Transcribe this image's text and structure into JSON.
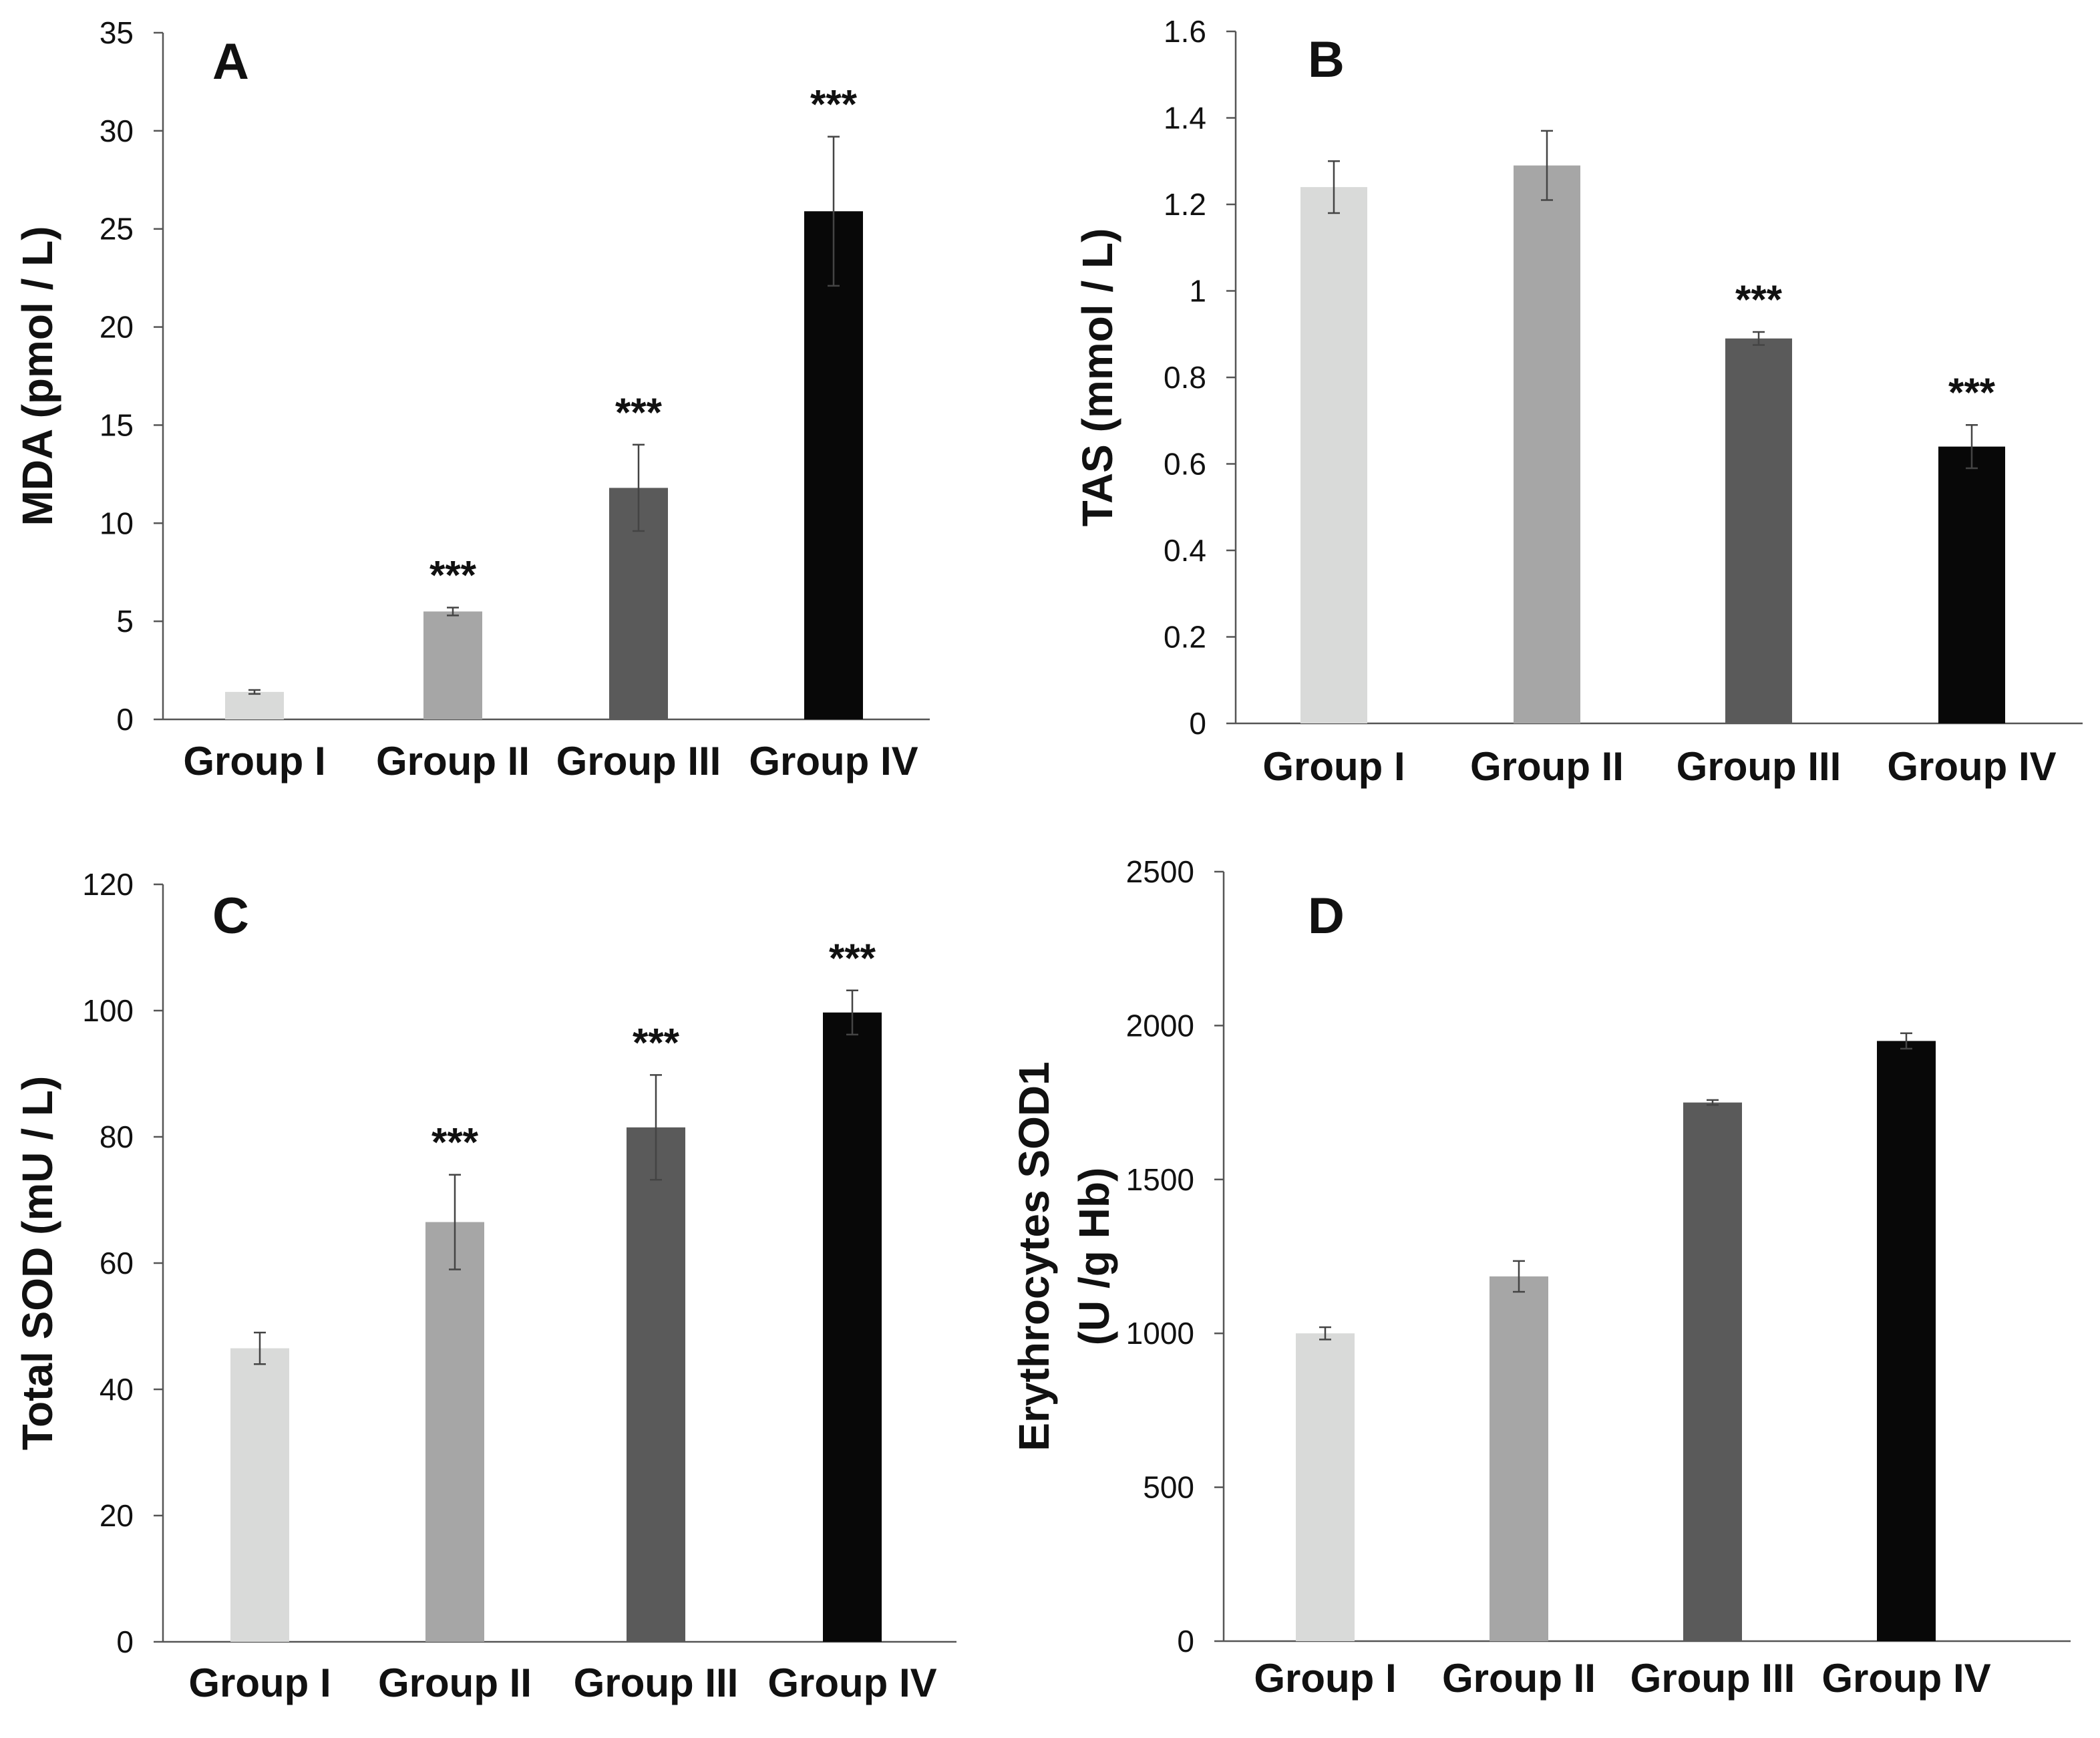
{
  "chart_data": [
    {
      "type": "bar",
      "panel_label": "A",
      "ylabel": "MDA (pmol / L)",
      "ylim": [
        0,
        35
      ],
      "yticks": [
        0,
        5,
        10,
        15,
        20,
        25,
        30,
        35
      ],
      "categories": [
        "Group I",
        "Group II",
        "Group III",
        "Group IV"
      ],
      "values": [
        1.4,
        5.5,
        11.8,
        25.9
      ],
      "errors": [
        0.1,
        0.2,
        2.2,
        3.8
      ],
      "significance": [
        "",
        "***",
        "***",
        "***"
      ],
      "colors": [
        "#d9dad9",
        "#a6a6a6",
        "#5a5a5a",
        "#080808"
      ]
    },
    {
      "type": "bar",
      "panel_label": "B",
      "ylabel": "TAS (mmol / L)",
      "ylim": [
        0,
        1.6
      ],
      "yticks": [
        0,
        0.2,
        0.4,
        0.6,
        0.8,
        1,
        1.2,
        1.4,
        1.6
      ],
      "categories": [
        "Group I",
        "Group II",
        "Group III",
        "Group IV"
      ],
      "values": [
        1.24,
        1.29,
        0.89,
        0.64
      ],
      "errors": [
        0.06,
        0.08,
        0.015,
        0.05
      ],
      "significance": [
        "",
        "",
        "***",
        "***"
      ],
      "colors": [
        "#d9dad9",
        "#a6a6a6",
        "#5a5a5a",
        "#080808"
      ]
    },
    {
      "type": "bar",
      "panel_label": "C",
      "ylabel": "Total SOD (mU / L)",
      "ylim": [
        0,
        120
      ],
      "yticks": [
        0,
        20,
        40,
        60,
        80,
        100,
        120
      ],
      "categories": [
        "Group I",
        "Group II",
        "Group III",
        "Group IV"
      ],
      "values": [
        46.5,
        66.5,
        81.5,
        99.7
      ],
      "errors": [
        2.5,
        7.5,
        8.3,
        3.5
      ],
      "significance": [
        "",
        "***",
        "***",
        "***"
      ],
      "colors": [
        "#d9dad9",
        "#a6a6a6",
        "#5a5a5a",
        "#080808"
      ]
    },
    {
      "type": "bar",
      "panel_label": "D",
      "ylabel": "Erythrocytes SOD1",
      "ylabel2": "(U /g Hb)",
      "ylim": [
        0,
        2500
      ],
      "yticks": [
        0,
        500,
        1000,
        1500,
        2000,
        2500
      ],
      "categories": [
        "Group I",
        "Group II",
        "Group III",
        "Group IV"
      ],
      "values": [
        1000,
        1185,
        1750,
        1950
      ],
      "errors": [
        20,
        50,
        8,
        25
      ],
      "significance": [
        "",
        "",
        "",
        ""
      ],
      "colors": [
        "#d9dad9",
        "#a6a6a6",
        "#5a5a5a",
        "#080808"
      ]
    }
  ]
}
